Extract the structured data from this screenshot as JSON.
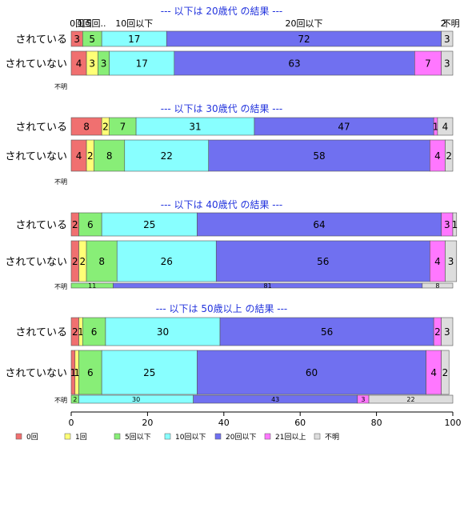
{
  "chart_data": {
    "type": "bar",
    "orientation": "horizontal",
    "stacked": true,
    "xlim": [
      0,
      100
    ],
    "xticks": [
      "0",
      "20",
      "40",
      "60",
      "80",
      "100"
    ],
    "legend_position": "bottom",
    "categories_legend": [
      {
        "name": "0回",
        "color": "#f07070"
      },
      {
        "name": "1回",
        "color": "#ffff77"
      },
      {
        "name": "5回以下",
        "color": "#88ee77"
      },
      {
        "name": "10回以下",
        "color": "#88ffff"
      },
      {
        "name": "20回以下",
        "color": "#7070f0"
      },
      {
        "name": "21回以上",
        "color": "#ff77ff"
      },
      {
        "name": "不明",
        "color": "#dddddd"
      }
    ],
    "top_category_labels": [
      {
        "text": "0回",
        "at": 1.5
      },
      {
        "text": "1回",
        "at": 3.5
      },
      {
        "text": "5回..",
        "at": 6.5
      },
      {
        "text": "10回以下",
        "at": 16.5
      },
      {
        "text": "20回以下",
        "at": 61
      },
      {
        "text": "2",
        "at": 97.5
      },
      {
        "text": "不明",
        "at": 99.5
      }
    ],
    "panels": [
      {
        "title": "--- 以下は 20歳代 の結果 ---",
        "rows": [
          {
            "label": "されている",
            "values": [
              3,
              0,
              5,
              17,
              72,
              0,
              3
            ],
            "shown": [
              "3",
              "",
              "5",
              "17",
              "72",
              "",
              "3"
            ]
          },
          {
            "label": "されていない",
            "values": [
              4,
              3,
              3,
              17,
              63,
              7,
              3
            ],
            "shown": [
              "4",
              "3",
              "3",
              "17",
              "63",
              "7",
              "3"
            ]
          }
        ],
        "unknown": {
          "label": "不明",
          "values": [],
          "shown": []
        }
      },
      {
        "title": "--- 以下は 30歳代 の結果 ---",
        "rows": [
          {
            "label": "されている",
            "values": [
              8,
              2,
              7,
              31,
              47,
              1,
              4
            ],
            "shown": [
              "8",
              "2",
              "7",
              "31",
              "47",
              "1",
              "4"
            ]
          },
          {
            "label": "されていない",
            "values": [
              4,
              2,
              8,
              22,
              58,
              4,
              2
            ],
            "shown": [
              "4",
              "2",
              "8",
              "22",
              "58",
              "4",
              "2"
            ]
          }
        ],
        "unknown": {
          "label": "不明",
          "values": [],
          "shown": []
        }
      },
      {
        "title": "--- 以下は 40歳代 の結果 ---",
        "rows": [
          {
            "label": "されている",
            "values": [
              2,
              0,
              6,
              25,
              64,
              3,
              1
            ],
            "shown": [
              "2",
              "",
              "6",
              "25",
              "64",
              "3",
              "1"
            ]
          },
          {
            "label": "されていない",
            "values": [
              2,
              2,
              8,
              26,
              56,
              4,
              3
            ],
            "shown": [
              "2",
              "2",
              "8",
              "26",
              "56",
              "4",
              "3"
            ]
          }
        ],
        "unknown": {
          "label": "不明",
          "values": [
            0,
            0,
            11,
            0,
            81,
            0,
            8
          ],
          "shown": [
            "",
            "",
            "11",
            "",
            "81",
            "",
            "8"
          ]
        }
      },
      {
        "title": "--- 以下は 50歳以上 の結果 ---",
        "rows": [
          {
            "label": "されている",
            "values": [
              2,
              1,
              6,
              30,
              56,
              2,
              3
            ],
            "shown": [
              "2",
              "1",
              "6",
              "30",
              "56",
              "2",
              "3"
            ]
          },
          {
            "label": "されていない",
            "values": [
              1,
              1,
              6,
              25,
              60,
              4,
              2
            ],
            "shown": [
              "1",
              "1",
              "6",
              "25",
              "60",
              "4",
              "2"
            ]
          }
        ],
        "unknown": {
          "label": "不明",
          "values": [
            0,
            0,
            2,
            30,
            43,
            3,
            22
          ],
          "shown": [
            "",
            "",
            "2",
            "30",
            "43",
            "3",
            "22"
          ]
        }
      }
    ]
  }
}
